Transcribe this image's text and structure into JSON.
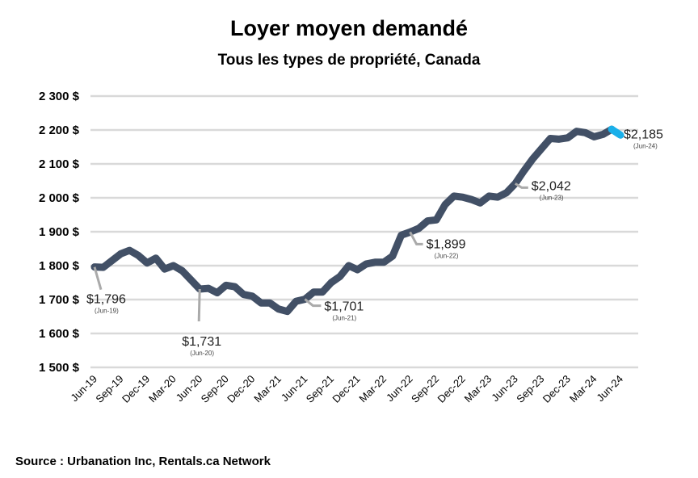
{
  "chart_data": {
    "type": "line",
    "title": "Loyer moyen demandé",
    "subtitle": "Tous les types de propriété, Canada",
    "xlabel": "",
    "ylabel": "",
    "ylim": [
      1500,
      2300
    ],
    "yticks": [
      "1 500 $",
      "1 600 $",
      "1 700 $",
      "1 800 $",
      "1 900 $",
      "2 000 $",
      "2 100 $",
      "2 200 $",
      "2 300 $"
    ],
    "ytick_values": [
      1500,
      1600,
      1700,
      1800,
      1900,
      2000,
      2100,
      2200,
      2300
    ],
    "xtick_labels": [
      "Jun-19",
      "Sep-19",
      "Dec-19",
      "Mar-20",
      "Jun-20",
      "Sep-20",
      "Dec-20",
      "Mar-21",
      "Jun-21",
      "Sep-21",
      "Dec-21",
      "Mar-22",
      "Jun-22",
      "Sep-22",
      "Dec-22",
      "Mar-23",
      "Jun-23",
      "Sep-23",
      "Dec-23",
      "Mar-24",
      "Jun-24"
    ],
    "grid": true,
    "line_color": "#425066",
    "highlight_color": "#1ab0ea",
    "series": [
      {
        "values": [
          1796,
          1795,
          1815,
          1835,
          1845,
          1830,
          1808,
          1822,
          1790,
          1800,
          1785,
          1758,
          1731,
          1733,
          1720,
          1742,
          1738,
          1715,
          1710,
          1690,
          1690,
          1672,
          1665,
          1695,
          1701,
          1722,
          1722,
          1750,
          1768,
          1800,
          1788,
          1805,
          1810,
          1810,
          1828,
          1890,
          1899,
          1910,
          1932,
          1935,
          1980,
          2005,
          2002,
          1995,
          1985,
          2005,
          2002,
          2015,
          2042,
          2080,
          2115,
          2145,
          2175,
          2173,
          2177,
          2196,
          2192,
          2180,
          2187,
          2202,
          2185
        ]
      }
    ],
    "annotations": [
      {
        "label": "$1,796",
        "date": "(Jun-19)",
        "index": 0
      },
      {
        "label": "$1,731",
        "date": "(Jun-20)",
        "index": 12
      },
      {
        "label": "$1,701",
        "date": "(Jun-21)",
        "index": 24
      },
      {
        "label": "$1,899",
        "date": "(Jun-22)",
        "index": 36
      },
      {
        "label": "$2,042",
        "date": "(Jun-23)",
        "index": 48
      },
      {
        "label": "$2,185",
        "date": "(Jun-24)",
        "index": 60
      }
    ]
  },
  "source": "Source : Urbanation Inc, Rentals.ca Network"
}
